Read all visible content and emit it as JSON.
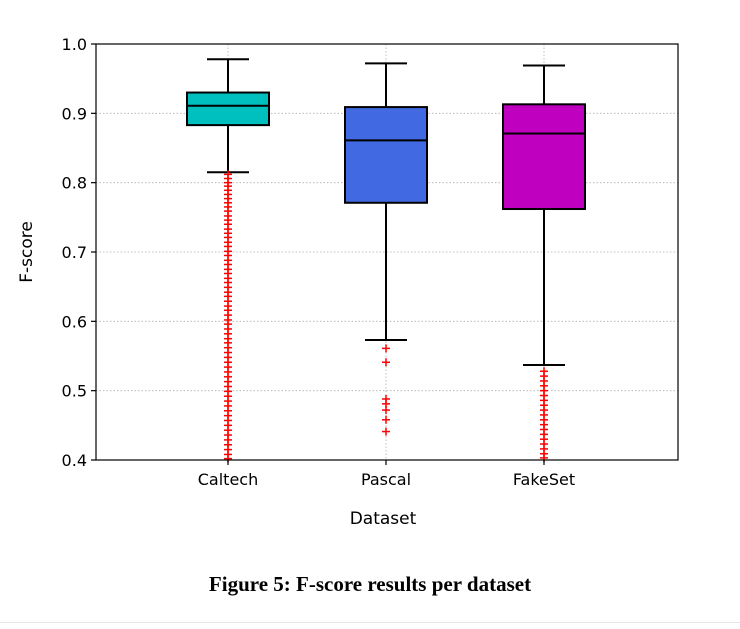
{
  "chart_data": {
    "type": "box",
    "xlabel": "Dataset",
    "ylabel": "F-score",
    "ylim": [
      0.4,
      1.0
    ],
    "yticks": [
      "0.4",
      "0.5",
      "0.6",
      "0.7",
      "0.8",
      "0.9",
      "1.0"
    ],
    "grid": true,
    "categories": [
      "Caltech",
      "Pascal",
      "FakeSet"
    ],
    "boxes": [
      {
        "category": "Caltech",
        "color": "#00bfbf",
        "whisker_low": 0.815,
        "q1": 0.883,
        "median": 0.911,
        "q3": 0.93,
        "whisker_high": 0.978,
        "outliers": [
          0.812,
          0.806,
          0.8,
          0.795,
          0.789,
          0.783,
          0.777,
          0.771,
          0.765,
          0.759,
          0.752,
          0.746,
          0.74,
          0.733,
          0.727,
          0.721,
          0.714,
          0.708,
          0.701,
          0.695,
          0.688,
          0.682,
          0.675,
          0.669,
          0.662,
          0.656,
          0.649,
          0.642,
          0.636,
          0.629,
          0.622,
          0.616,
          0.609,
          0.602,
          0.596,
          0.589,
          0.582,
          0.575,
          0.569,
          0.562,
          0.555,
          0.548,
          0.541,
          0.534,
          0.527,
          0.52,
          0.513,
          0.506,
          0.499,
          0.492,
          0.485,
          0.478,
          0.471,
          0.464,
          0.457,
          0.45,
          0.443,
          0.436,
          0.429,
          0.422,
          0.415,
          0.408,
          0.402
        ]
      },
      {
        "category": "Pascal",
        "color": "#4169e1",
        "whisker_low": 0.573,
        "q1": 0.771,
        "median": 0.861,
        "q3": 0.909,
        "whisker_high": 0.972,
        "outliers": [
          0.561,
          0.541,
          0.488,
          0.481,
          0.472,
          0.458,
          0.441
        ]
      },
      {
        "category": "FakeSet",
        "color": "#bf00bf",
        "whisker_low": 0.537,
        "q1": 0.762,
        "median": 0.871,
        "q3": 0.913,
        "whisker_high": 0.969,
        "outliers": [
          0.528,
          0.521,
          0.514,
          0.507,
          0.5,
          0.493,
          0.486,
          0.479,
          0.472,
          0.465,
          0.458,
          0.451,
          0.444,
          0.437,
          0.43,
          0.423,
          0.416,
          0.409,
          0.403
        ]
      }
    ],
    "outlier_color": "#ff0000"
  },
  "caption": "Figure 5: F-score results per dataset"
}
